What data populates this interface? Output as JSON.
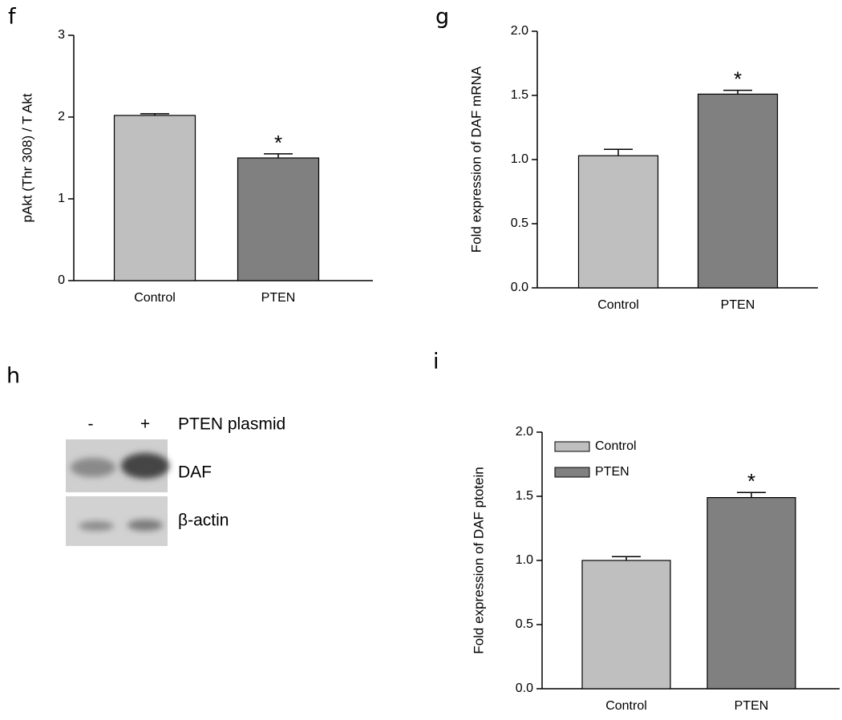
{
  "chart_data": [
    {
      "type": "bar",
      "panel": "f",
      "ylabel": "pAkt (Thr 308) / T Akt",
      "categories": [
        "Control",
        "PTEN"
      ],
      "values": [
        2.02,
        1.5
      ],
      "errors": [
        0.02,
        0.05
      ],
      "colors": [
        "#bfbfbf",
        "#808080"
      ],
      "significance": [
        null,
        "*"
      ],
      "ylim": [
        0,
        3
      ],
      "yticks": [
        0,
        1,
        2,
        3
      ]
    },
    {
      "type": "bar",
      "panel": "g",
      "ylabel": "Fold expression of DAF mRNA",
      "categories": [
        "Control",
        "PTEN"
      ],
      "values": [
        1.03,
        1.51
      ],
      "errors": [
        0.05,
        0.03
      ],
      "colors": [
        "#bfbfbf",
        "#808080"
      ],
      "significance": [
        null,
        "*"
      ],
      "ylim": [
        0,
        2
      ],
      "yticks": [
        {
          "value": 0,
          "label": "0.0"
        },
        0.5,
        {
          "value": 1,
          "label": "1.0"
        },
        1.5,
        {
          "value": 2,
          "label": "2.0"
        }
      ]
    },
    {
      "type": "bar",
      "panel": "i",
      "ylabel": "Fold expression of DAF ptotein",
      "categories": [
        "Control",
        "PTEN"
      ],
      "values": [
        1.0,
        1.49
      ],
      "errors": [
        0.03,
        0.04
      ],
      "colors": [
        "#bfbfbf",
        "#808080"
      ],
      "significance": [
        null,
        "*"
      ],
      "legend": "upper left",
      "ylim": [
        0,
        2
      ],
      "yticks": [
        {
          "value": 0,
          "label": "0.0"
        },
        0.5,
        {
          "value": 1,
          "label": "1.0"
        },
        1.5,
        {
          "value": 2,
          "label": "2.0"
        }
      ]
    }
  ],
  "blot": {
    "panel": "h",
    "lanes": [
      "-",
      "+"
    ],
    "treatment": "PTEN plasmid",
    "bands": [
      "DAF",
      "β-actin"
    ]
  }
}
